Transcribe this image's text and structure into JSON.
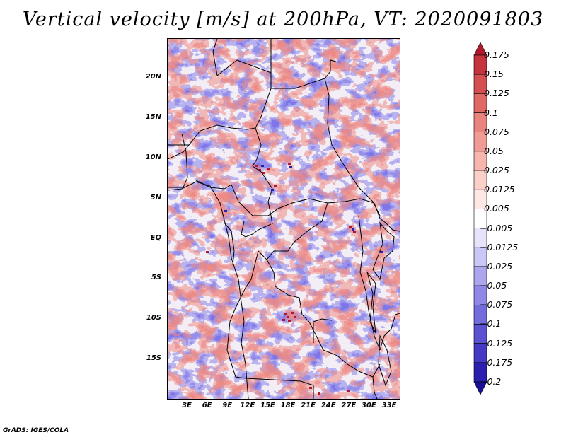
{
  "title": "Vertical velocity [m/s] at 200hPa, VT: 2020091803",
  "credit": "GrADS: IGES/COLA",
  "lat_labels": [
    "20N",
    "15N",
    "10N",
    "5N",
    "EQ",
    "5S",
    "10S",
    "15S"
  ],
  "lon_labels": [
    "3E",
    "6E",
    "9E",
    "12E",
    "15E",
    "18E",
    "21E",
    "24E",
    "27E",
    "30E",
    "33E"
  ],
  "colorbar": {
    "labels": [
      "0.175",
      "0.15",
      "0.125",
      "0.1",
      "0.075",
      "0.05",
      "0.025",
      "0.0125",
      "0.005",
      "−0.005",
      "−0.0125",
      "−0.025",
      "−0.05",
      "−0.075",
      "−0.1",
      "−0.125",
      "−0.175",
      "−0.2"
    ],
    "colors": [
      "#b2182b",
      "#c4343f",
      "#d44f52",
      "#e06966",
      "#e9837d",
      "#f09c95",
      "#f6b5ad",
      "#fbd0c8",
      "#fee8e3",
      "#ffffff",
      "#e6e4fb",
      "#cac6f6",
      "#aca6ef",
      "#8f88e6",
      "#746cdd",
      "#5b52d2",
      "#4339c5",
      "#2b1fb0",
      "#1a0f96"
    ]
  },
  "field": {
    "colors": {
      "positive": "#e87a74",
      "negative": "#7a73e6",
      "strong_positive": "#b2182b",
      "strong_negative": "#2b1fb0"
    }
  }
}
